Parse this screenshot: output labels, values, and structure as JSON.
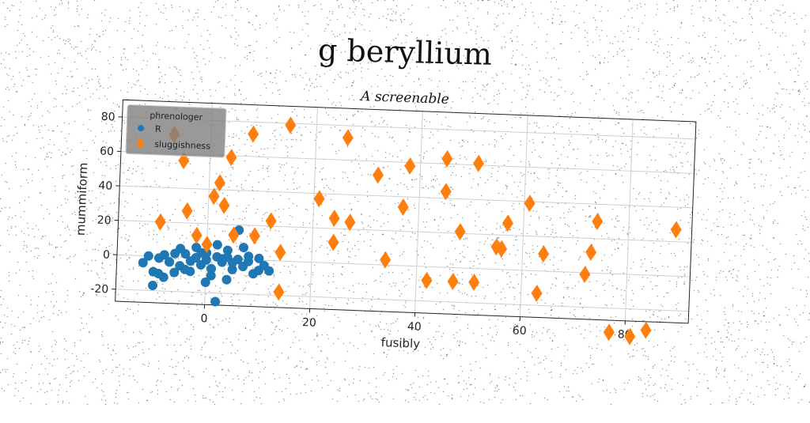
{
  "chart_data": {
    "type": "scatter",
    "title": "g beryllium",
    "subtitle": "A screenable",
    "xlabel": "fusibly",
    "ylabel": "mummiform",
    "xlim": [
      -17,
      92
    ],
    "ylim": [
      -27,
      90
    ],
    "xticks": [
      0,
      20,
      40,
      60,
      80
    ],
    "yticks": [
      -20,
      0,
      20,
      40,
      60,
      80
    ],
    "grid": true,
    "legend": {
      "title": "phrenologer",
      "placement": "top-left"
    },
    "series": [
      {
        "name": "R",
        "marker": "circle",
        "color": "#1f77b4",
        "x": [
          -12,
          -11,
          -10,
          -9,
          -8,
          -7,
          -6,
          -5,
          -4,
          -3,
          -2,
          -1,
          0,
          1,
          2,
          3,
          4,
          5,
          6,
          7,
          8,
          9,
          10,
          11,
          12,
          -10,
          -8,
          -6,
          -4,
          -2,
          0,
          2,
          4,
          6,
          8,
          10,
          -5,
          -3,
          -1,
          1,
          3,
          5,
          7,
          -7,
          2,
          0,
          -9,
          4
        ],
        "y": [
          -4,
          0,
          -9,
          -1,
          1,
          -3,
          -9,
          -5,
          2,
          -8,
          0,
          -4,
          3,
          -10,
          1,
          -2,
          5,
          -6,
          0,
          -4,
          2,
          -8,
          1,
          -3,
          -6,
          -17,
          -12,
          2,
          -7,
          6,
          -1,
          8,
          -12,
          17,
          -1,
          -6,
          5,
          -2,
          3,
          -6,
          0,
          -2,
          7,
          -3,
          -25,
          -14,
          -10,
          1
        ]
      },
      {
        "name": "sluggishness",
        "marker": "diamond",
        "color": "#ff7f0e",
        "x": [
          -9,
          -7,
          -4,
          -2,
          0,
          1,
          2,
          3,
          4,
          5,
          8,
          9,
          12,
          14,
          14,
          15,
          21,
          24,
          24,
          26,
          27,
          32,
          34,
          37,
          38,
          42,
          45,
          45,
          47,
          48,
          51,
          51,
          55,
          56,
          57,
          61,
          63,
          64,
          72,
          73,
          74,
          77,
          81,
          84,
          89,
          -5
        ],
        "y": [
          20,
          71,
          27,
          13,
          8,
          36,
          44,
          31,
          59,
          14,
          73,
          14,
          23,
          5,
          -18,
          79,
          37,
          26,
          12,
          73,
          24,
          52,
          3,
          34,
          58,
          -8,
          63,
          44,
          -8,
          21,
          -8,
          61,
          13,
          12,
          27,
          39,
          -13,
          10,
          -1,
          12,
          30,
          -34,
          -36,
          -32,
          27,
          56
        ]
      }
    ]
  }
}
